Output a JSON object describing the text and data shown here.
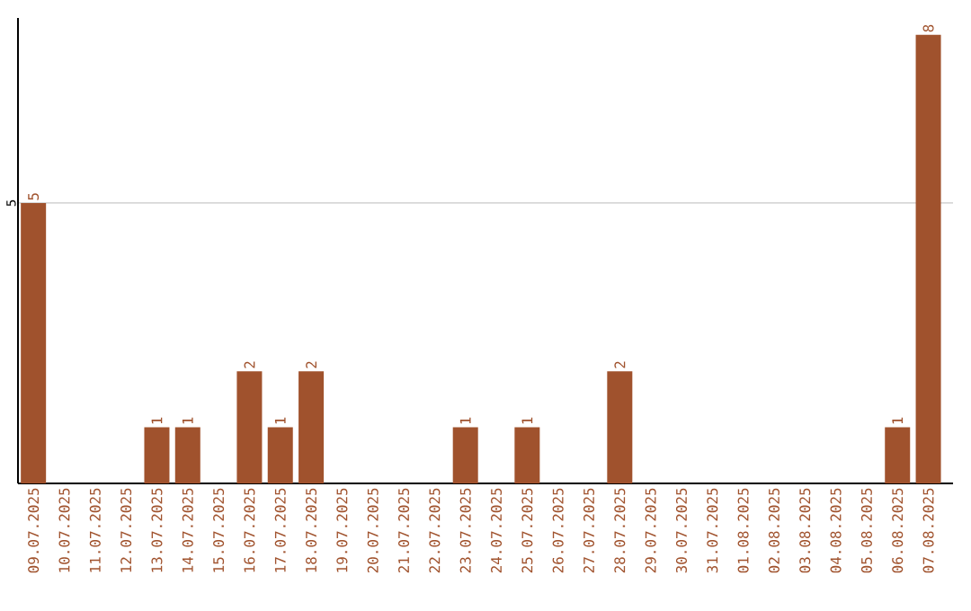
{
  "chart_data": {
    "type": "bar",
    "categories": [
      "09.07.2025",
      "10.07.2025",
      "11.07.2025",
      "12.07.2025",
      "13.07.2025",
      "14.07.2025",
      "15.07.2025",
      "16.07.2025",
      "17.07.2025",
      "18.07.2025",
      "19.07.2025",
      "20.07.2025",
      "21.07.2025",
      "22.07.2025",
      "23.07.2025",
      "24.07.2025",
      "25.07.2025",
      "26.07.2025",
      "27.07.2025",
      "28.07.2025",
      "29.07.2025",
      "30.07.2025",
      "31.07.2025",
      "01.08.2025",
      "02.08.2025",
      "03.08.2025",
      "04.08.2025",
      "05.08.2025",
      "06.08.2025",
      "07.08.2025"
    ],
    "values": [
      5,
      0,
      0,
      0,
      1,
      1,
      0,
      2,
      1,
      2,
      0,
      0,
      0,
      0,
      1,
      0,
      1,
      0,
      0,
      2,
      0,
      0,
      0,
      0,
      0,
      0,
      0,
      0,
      1,
      8
    ],
    "value_labels": [
      "5",
      null,
      null,
      null,
      "1",
      "1",
      null,
      "2",
      "1",
      "2",
      null,
      null,
      null,
      null,
      "1",
      null,
      "1",
      null,
      null,
      "2",
      null,
      null,
      null,
      null,
      null,
      null,
      null,
      null,
      "1",
      "8"
    ],
    "color": "#a0522d",
    "ylim": [
      0,
      8.3
    ],
    "yticks": [
      5
    ],
    "grid": "y"
  }
}
